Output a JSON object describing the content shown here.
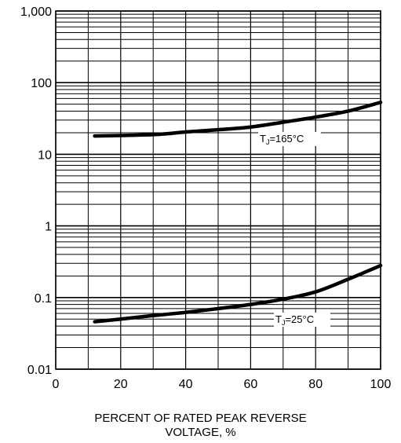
{
  "chart_data": {
    "type": "line",
    "title": "",
    "xlabel_lines": [
      "PERCENT OF RATED PEAK REVERSE",
      "VOLTAGE, %"
    ],
    "ylabel": "",
    "xlim": [
      0,
      100
    ],
    "ylim": [
      0.01,
      1000
    ],
    "yscale": "log",
    "grid": true,
    "x_ticks": [
      0,
      20,
      40,
      60,
      80,
      100
    ],
    "x_tick_labels": [
      "0",
      "20",
      "40",
      "60",
      "80",
      "100"
    ],
    "y_ticks": [
      0.01,
      0.1,
      1,
      10,
      100,
      1000
    ],
    "y_tick_labels": [
      "0.01",
      "0.1",
      "1",
      "10",
      "100",
      "1,000"
    ],
    "series": [
      {
        "name": "TJ=165°C",
        "label_main": "T",
        "label_sub": "J",
        "label_rest": "=165°C",
        "color": "#000000",
        "x": [
          12,
          20,
          32,
          40,
          50,
          60,
          70,
          80,
          90,
          100
        ],
        "y": [
          18,
          18.3,
          19,
          20.5,
          22,
          24,
          28,
          33,
          40,
          53
        ]
      },
      {
        "name": "TJ=25°C",
        "label_main": "T",
        "label_sub": "J",
        "label_rest": "=25°C",
        "color": "#000000",
        "x": [
          12,
          20,
          30,
          40,
          50,
          60,
          70,
          80,
          90,
          100
        ],
        "y": [
          0.046,
          0.05,
          0.056,
          0.062,
          0.07,
          0.08,
          0.095,
          0.12,
          0.18,
          0.28
        ]
      }
    ]
  }
}
